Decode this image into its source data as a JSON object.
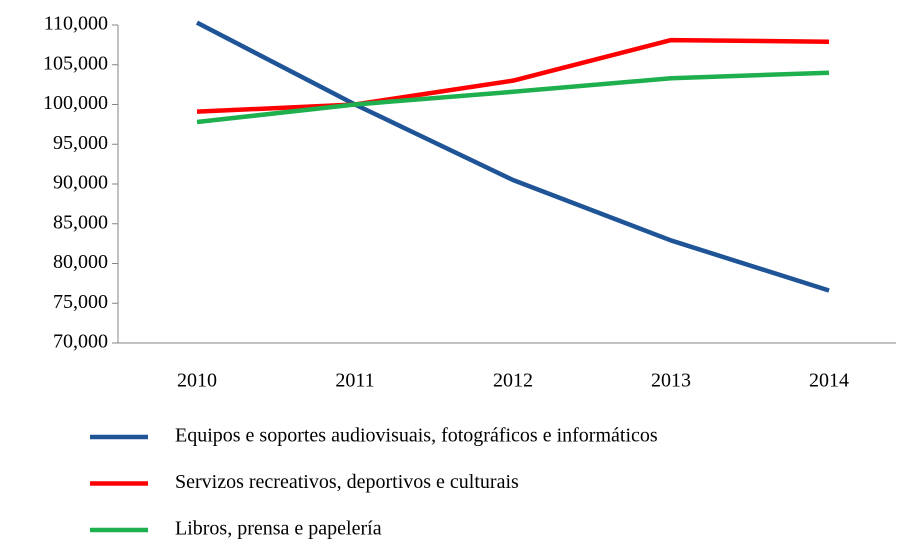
{
  "chart_data": {
    "type": "line",
    "categories": [
      "2010",
      "2011",
      "2012",
      "2013",
      "2014"
    ],
    "series": [
      {
        "name": "Equipos e soportes audiovisuais, fotográficos e informáticos",
        "color": "#1f5597",
        "values": [
          110.3,
          100,
          90.5,
          82.9,
          76.6
        ]
      },
      {
        "name": "Servizos recreativos, deportivos e culturais",
        "color": "#ff0000",
        "values": [
          99.1,
          100,
          103.0,
          108.1,
          107.9
        ]
      },
      {
        "name": "Libros, prensa e papelería",
        "color": "#1eb04e",
        "values": [
          97.8,
          100,
          101.6,
          103.3,
          104.0
        ]
      }
    ],
    "ylim": [
      70,
      110
    ],
    "yticks": [
      {
        "value": 70,
        "label": "70,000"
      },
      {
        "value": 75,
        "label": "75,000"
      },
      {
        "value": 80,
        "label": "80,000"
      },
      {
        "value": 85,
        "label": "85,000"
      },
      {
        "value": 90,
        "label": "90,000"
      },
      {
        "value": 95,
        "label": "95,000"
      },
      {
        "value": 100,
        "label": "100,000"
      },
      {
        "value": 105,
        "label": "105,000"
      },
      {
        "value": 110,
        "label": "110,000"
      }
    ],
    "grid": false,
    "legend": "bottom"
  }
}
